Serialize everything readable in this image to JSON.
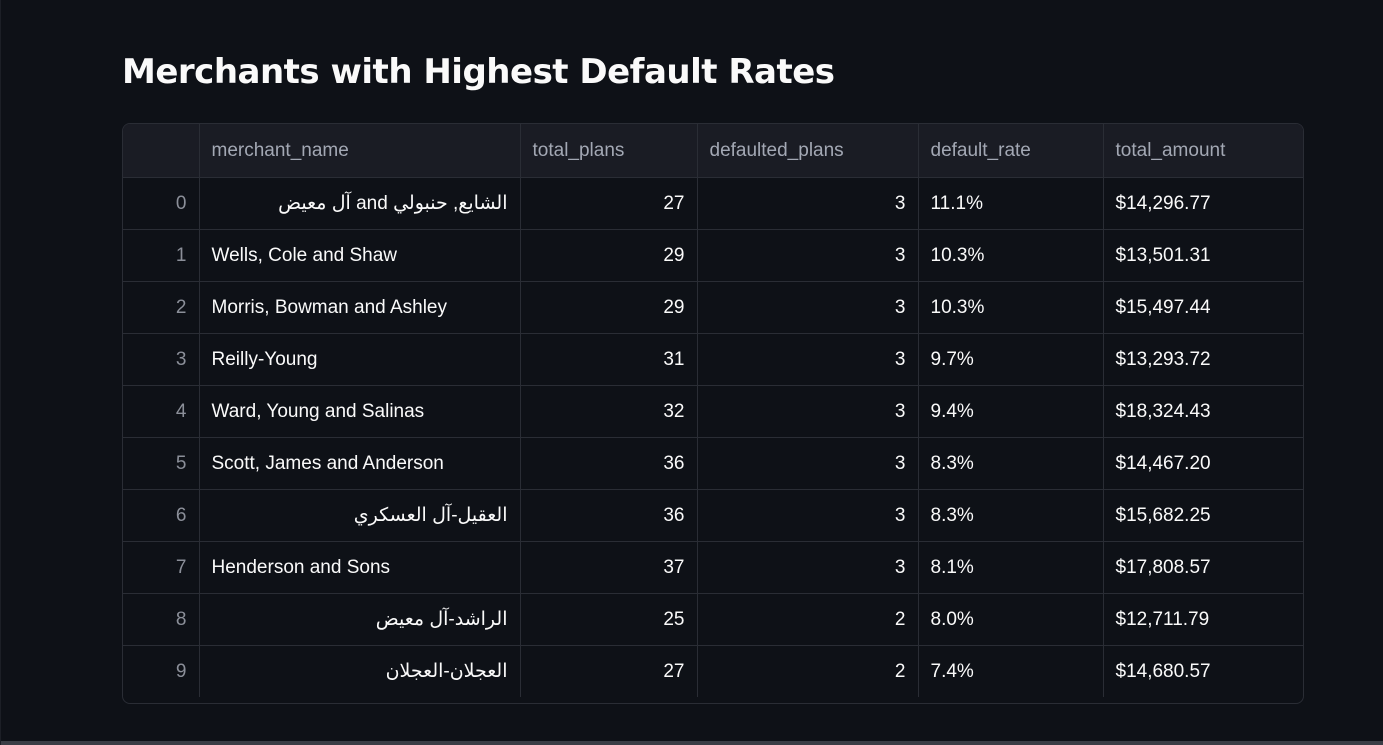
{
  "page": {
    "title": "Merchants with Highest Default Rates"
  },
  "table": {
    "columns": [
      "",
      "merchant_name",
      "total_plans",
      "defaulted_plans",
      "default_rate",
      "total_amount"
    ],
    "rows": [
      {
        "index": "0",
        "merchant_name": "الشايع, حنبولي and آل معيض",
        "rtl": true,
        "total_plans": "27",
        "defaulted_plans": "3",
        "default_rate": "11.1%",
        "total_amount": "$14,296.77"
      },
      {
        "index": "1",
        "merchant_name": "Wells, Cole and Shaw",
        "rtl": false,
        "total_plans": "29",
        "defaulted_plans": "3",
        "default_rate": "10.3%",
        "total_amount": "$13,501.31"
      },
      {
        "index": "2",
        "merchant_name": "Morris, Bowman and Ashley",
        "rtl": false,
        "total_plans": "29",
        "defaulted_plans": "3",
        "default_rate": "10.3%",
        "total_amount": "$15,497.44"
      },
      {
        "index": "3",
        "merchant_name": "Reilly-Young",
        "rtl": false,
        "total_plans": "31",
        "defaulted_plans": "3",
        "default_rate": "9.7%",
        "total_amount": "$13,293.72"
      },
      {
        "index": "4",
        "merchant_name": "Ward, Young and Salinas",
        "rtl": false,
        "total_plans": "32",
        "defaulted_plans": "3",
        "default_rate": "9.4%",
        "total_amount": "$18,324.43"
      },
      {
        "index": "5",
        "merchant_name": "Scott, James and Anderson",
        "rtl": false,
        "total_plans": "36",
        "defaulted_plans": "3",
        "default_rate": "8.3%",
        "total_amount": "$14,467.20"
      },
      {
        "index": "6",
        "merchant_name": "العقيل-آل العسكري",
        "rtl": true,
        "total_plans": "36",
        "defaulted_plans": "3",
        "default_rate": "8.3%",
        "total_amount": "$15,682.25"
      },
      {
        "index": "7",
        "merchant_name": "Henderson and Sons",
        "rtl": false,
        "total_plans": "37",
        "defaulted_plans": "3",
        "default_rate": "8.1%",
        "total_amount": "$17,808.57"
      },
      {
        "index": "8",
        "merchant_name": "الراشد-آل معيض",
        "rtl": true,
        "total_plans": "25",
        "defaulted_plans": "2",
        "default_rate": "8.0%",
        "total_amount": "$12,711.79"
      },
      {
        "index": "9",
        "merchant_name": "العجلان-العجلان",
        "rtl": true,
        "total_plans": "27",
        "defaulted_plans": "2",
        "default_rate": "7.4%",
        "total_amount": "$14,680.57"
      }
    ]
  },
  "colors": {
    "background": "#0e1117",
    "header_background": "#1a1c24",
    "border": "#2a2d35",
    "text": "#fafafa",
    "muted_text": "#a3a8b4"
  }
}
